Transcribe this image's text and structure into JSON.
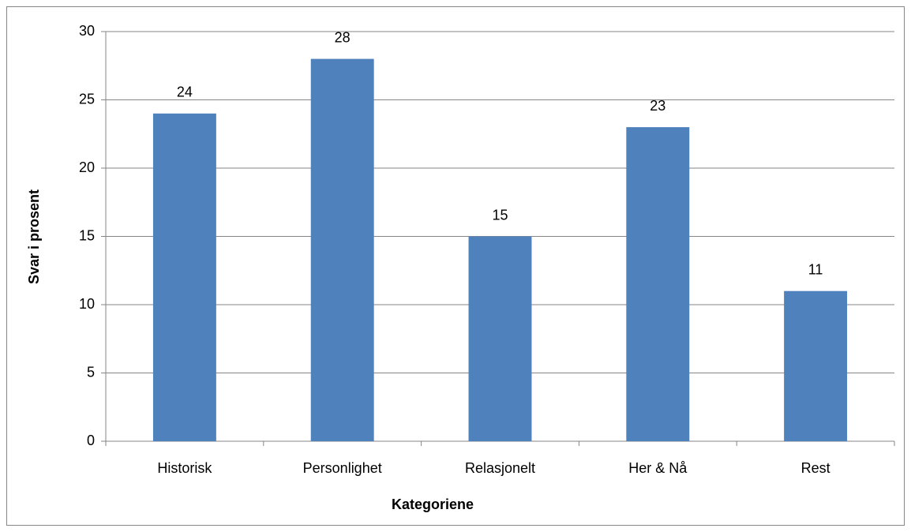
{
  "chart_data": {
    "type": "bar",
    "categories": [
      "Historisk",
      "Personlighet",
      "Relasjonelt",
      "Her & Nå",
      "Rest"
    ],
    "values": [
      24,
      28,
      15,
      23,
      11
    ],
    "color": "#4f81bd",
    "xlabel": "Kategoriene",
    "ylabel": "Svar i prosent",
    "ylim": [
      0,
      30
    ],
    "yticks": [
      0,
      5,
      10,
      15,
      20,
      25,
      30
    ],
    "grid": true
  }
}
